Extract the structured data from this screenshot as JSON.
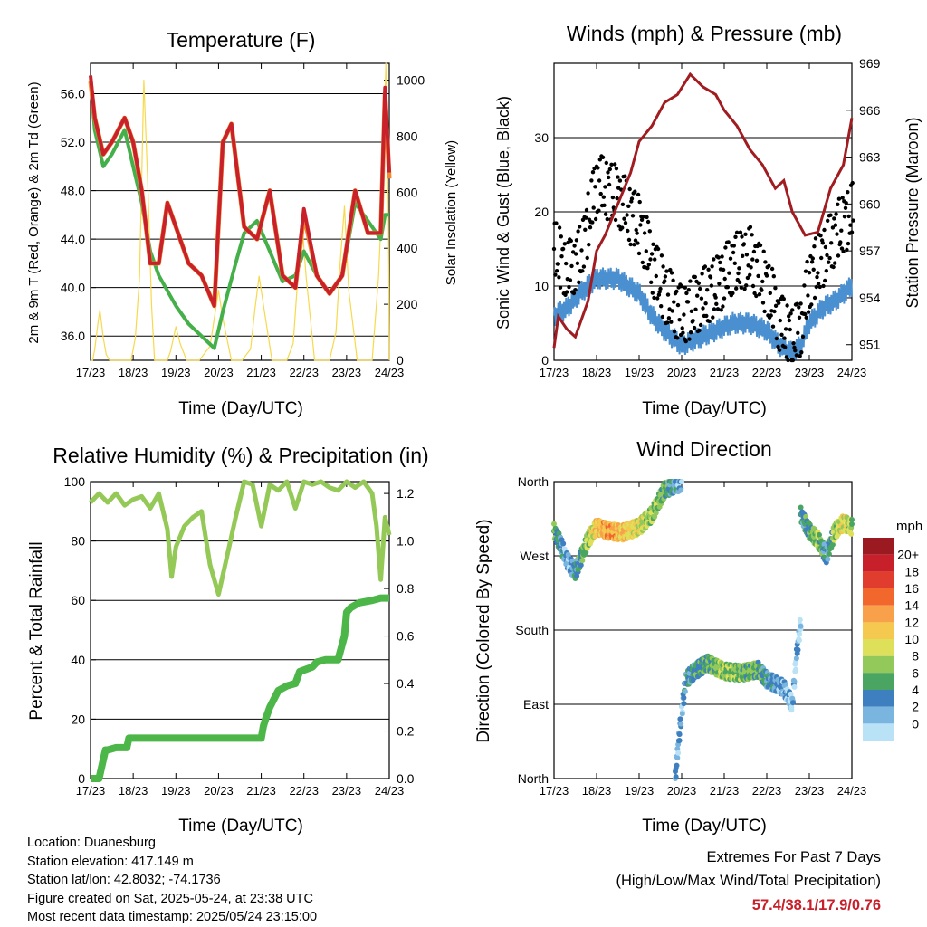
{
  "colors": {
    "temp2m": "#c9212b",
    "temp9m": "#f08a2e",
    "dewpoint": "#45b04a",
    "solar": "#f7d94d",
    "wind": "#4a8fd0",
    "gust": "#000000",
    "pressure": "#a01c20",
    "rh": "#95c957",
    "rain": "#4cb748",
    "grid": "#000000",
    "extremes": "#c8202a"
  },
  "chart_data": [
    {
      "id": "temperature",
      "type": "line",
      "title": "Temperature (F)",
      "xlabel": "Time (Day/UTC)",
      "ylabel": "2m & 9m T (Red, Orange) & 2m Td (Green)",
      "ylabel_right": "Solar Insolation (Yellow)",
      "x_ticks": [
        "17/23",
        "18/23",
        "19/23",
        "20/23",
        "21/23",
        "22/23",
        "23/23",
        "24/23"
      ],
      "ylim": [
        34,
        58.5
      ],
      "y_ticks": [
        "56.0",
        "52.0",
        "48.0",
        "44.0",
        "40.0",
        "36.0"
      ],
      "y_tick_values": [
        56,
        52,
        48,
        44,
        40,
        36
      ],
      "ylim_right": [
        0,
        1060
      ],
      "y_ticks_right": [
        "1000",
        "800",
        "600",
        "400",
        "200",
        "0"
      ],
      "y_tick_values_right": [
        1000,
        800,
        600,
        400,
        200,
        0
      ],
      "series": [
        {
          "key": "solar",
          "color": "#f7d94d",
          "axis": "right",
          "x": [
            0,
            0.05,
            0.1,
            0.18,
            0.22,
            0.3,
            0.37,
            0.45,
            0.95,
            1.05,
            1.15,
            1.25,
            1.35,
            1.43,
            1.5,
            1.8,
            1.87,
            1.93,
            2.0,
            2.1,
            2.25,
            2.55,
            2.8,
            2.9,
            3.0,
            3.1,
            3.3,
            3.55,
            3.75,
            3.85,
            3.95,
            4.05,
            4.25,
            4.6,
            4.75,
            4.85,
            4.95,
            5.05,
            5.25,
            5.6,
            5.75,
            5.85,
            5.95,
            6.05,
            6.25,
            6.6,
            6.75,
            6.85,
            6.92,
            6.98,
            7.0
          ],
          "y": [
            0,
            0,
            40,
            140,
            180,
            80,
            20,
            0,
            0,
            80,
            300,
            1000,
            600,
            200,
            0,
            0,
            30,
            70,
            120,
            60,
            0,
            0,
            50,
            150,
            250,
            150,
            0,
            0,
            40,
            180,
            300,
            200,
            0,
            0,
            60,
            280,
            500,
            300,
            0,
            0,
            100,
            350,
            550,
            250,
            0,
            0,
            300,
            650,
            1060,
            500,
            0
          ]
        },
        {
          "key": "dewpoint",
          "color": "#45b04a",
          "axis": "left",
          "x": [
            0,
            0.1,
            0.3,
            0.5,
            0.8,
            1.0,
            1.2,
            1.4,
            1.6,
            2.0,
            2.3,
            2.6,
            2.9,
            3.1,
            3.4,
            3.6,
            3.9,
            4.2,
            4.5,
            4.8,
            5.0,
            5.3,
            5.6,
            5.9,
            6.2,
            6.6,
            6.8,
            6.9,
            7.0
          ],
          "y": [
            57,
            53,
            50,
            51,
            53,
            50,
            47,
            43,
            41,
            38.5,
            37,
            36,
            35,
            38,
            42,
            44.5,
            45.5,
            43,
            40.5,
            41,
            43,
            41,
            39.5,
            41,
            47,
            45,
            44,
            46,
            46
          ]
        },
        {
          "key": "temp9m",
          "color": "#f08a2e",
          "axis": "left",
          "x": [
            0,
            0.1,
            0.3,
            0.5,
            0.8,
            1.0,
            1.2,
            1.4,
            1.6,
            1.8,
            2.0,
            2.3,
            2.6,
            2.9,
            3.1,
            3.3,
            3.6,
            3.9,
            4.2,
            4.5,
            4.8,
            5.0,
            5.3,
            5.6,
            5.9,
            6.2,
            6.5,
            6.8,
            6.9,
            7.0
          ],
          "y": [
            57,
            54,
            51,
            52,
            54,
            52,
            48,
            42,
            42,
            47,
            45,
            42,
            41,
            38.5,
            52,
            53.5,
            45,
            44,
            48,
            41,
            40,
            46,
            41,
            39.5,
            41,
            48,
            44.5,
            44.5,
            56,
            49
          ]
        },
        {
          "key": "temp2m",
          "color": "#c9212b",
          "axis": "left",
          "x": [
            0,
            0.1,
            0.3,
            0.5,
            0.8,
            1.0,
            1.2,
            1.4,
            1.6,
            1.8,
            2.0,
            2.3,
            2.6,
            2.9,
            3.1,
            3.3,
            3.6,
            3.9,
            4.2,
            4.5,
            4.8,
            5.0,
            5.3,
            5.6,
            5.9,
            6.2,
            6.5,
            6.8,
            6.9,
            7.0
          ],
          "y": [
            57.5,
            54,
            51,
            52,
            54,
            52,
            48,
            42,
            42,
            47,
            45,
            42,
            41,
            38.5,
            52,
            53.5,
            45,
            44,
            48,
            41,
            40,
            46.5,
            41,
            39.5,
            41,
            48,
            44.5,
            44.5,
            56.5,
            49.5
          ]
        }
      ]
    },
    {
      "id": "winds",
      "type": "scatter",
      "title": "Winds (mph) & Pressure (mb)",
      "xlabel": "Time (Day/UTC)",
      "ylabel": "Sonic Wind & Gust (Blue, Black)",
      "ylabel_right": "Station Pressure (Maroon)",
      "x_ticks": [
        "17/23",
        "18/23",
        "19/23",
        "20/23",
        "21/23",
        "22/23",
        "23/23",
        "24/23"
      ],
      "ylim": [
        0,
        40
      ],
      "y_ticks": [
        "30",
        "20",
        "10",
        "0"
      ],
      "y_tick_values": [
        30,
        20,
        10,
        0
      ],
      "ylim_right": [
        950.0,
        969.0
      ],
      "y_ticks_right": [
        "969",
        "966",
        "963",
        "960",
        "957",
        "954",
        "951"
      ],
      "y_tick_values_right": [
        969,
        966,
        963,
        960,
        957,
        954,
        951
      ],
      "series": [
        {
          "key": "wind",
          "color": "#4a8fd0",
          "type": "line",
          "x": [
            0,
            0.3,
            0.6,
            1.0,
            1.5,
            2.0,
            2.3,
            2.6,
            3.0,
            3.4,
            3.8,
            4.2,
            4.6,
            5.0,
            5.3,
            5.6,
            5.8,
            6.0,
            6.3,
            6.6,
            7.0
          ],
          "y": [
            6,
            7,
            9,
            11,
            11,
            9,
            6,
            4,
            2,
            3,
            4,
            5,
            5,
            4,
            2,
            1,
            2,
            5,
            7,
            8,
            10
          ]
        },
        {
          "key": "gust",
          "color": "#000000",
          "type": "scatter",
          "x": [
            0,
            0.3,
            0.6,
            1.0,
            1.5,
            2.0,
            2.3,
            2.6,
            3.0,
            3.4,
            3.8,
            4.2,
            4.6,
            5.0,
            5.3,
            5.6,
            5.8,
            6.0,
            6.3,
            6.6,
            7.0
          ],
          "y": [
            15,
            12,
            14,
            24,
            22,
            18,
            13,
            9,
            6,
            8,
            10,
            13,
            14,
            10,
            5,
            3,
            5,
            11,
            14,
            17,
            20
          ]
        },
        {
          "key": "pressure",
          "color": "#a01c20",
          "type": "line",
          "axis": "right",
          "x": [
            0,
            0.1,
            0.3,
            0.5,
            0.8,
            1.0,
            1.2,
            1.5,
            1.8,
            2.0,
            2.3,
            2.6,
            2.9,
            3.2,
            3.5,
            3.8,
            4.0,
            4.3,
            4.6,
            4.9,
            5.2,
            5.4,
            5.6,
            5.9,
            6.2,
            6.5,
            6.8,
            7.0
          ],
          "y": [
            950.8,
            952.8,
            952.0,
            951.5,
            953.8,
            957.0,
            958.0,
            960.0,
            962.0,
            964.0,
            965.0,
            966.5,
            967.0,
            968.3,
            967.5,
            967.0,
            966.0,
            965.0,
            963.5,
            962.5,
            961.0,
            961.5,
            959.5,
            958.0,
            958.2,
            961.0,
            962.5,
            965.5
          ]
        }
      ]
    },
    {
      "id": "humidity",
      "type": "line",
      "title": "Relative Humidity (%) & Precipitation (in)",
      "xlabel": "Time (Day/UTC)",
      "ylabel": "Percent & Total Rainfall",
      "x_ticks": [
        "17/23",
        "18/23",
        "19/23",
        "20/23",
        "21/23",
        "22/23",
        "23/23",
        "24/23"
      ],
      "ylim": [
        0,
        100
      ],
      "y_ticks": [
        "100",
        "80",
        "60",
        "40",
        "20",
        "0"
      ],
      "y_tick_values": [
        100,
        80,
        60,
        40,
        20,
        0
      ],
      "ylim_right": [
        0,
        1.25
      ],
      "y_ticks_right": [
        "1.2",
        "1.0",
        "0.8",
        "0.6",
        "0.4",
        "0.2",
        "0.0"
      ],
      "y_tick_values_right": [
        1.2,
        1.0,
        0.8,
        0.6,
        0.4,
        0.2,
        0.0
      ],
      "series": [
        {
          "key": "rh",
          "color": "#95c957",
          "axis": "left",
          "x": [
            0,
            0.2,
            0.4,
            0.6,
            0.8,
            1.0,
            1.2,
            1.4,
            1.6,
            1.8,
            1.9,
            2.0,
            2.2,
            2.4,
            2.6,
            2.8,
            3.0,
            3.2,
            3.4,
            3.6,
            3.8,
            4.0,
            4.2,
            4.4,
            4.6,
            4.8,
            5.0,
            5.2,
            5.4,
            5.6,
            5.8,
            6.0,
            6.2,
            6.4,
            6.6,
            6.7,
            6.8,
            6.9,
            7.0
          ],
          "y": [
            93,
            96,
            93,
            96,
            92,
            94,
            95,
            91,
            96,
            84,
            68,
            78,
            85,
            88,
            90,
            72,
            62,
            75,
            88,
            100,
            99,
            85,
            99,
            97,
            100,
            91,
            100,
            99,
            100,
            98,
            97,
            100,
            98,
            100,
            96,
            85,
            67,
            88,
            82
          ]
        },
        {
          "key": "rain",
          "color": "#4cb748",
          "axis": "right",
          "x": [
            0,
            0.2,
            0.35,
            0.4,
            0.6,
            0.85,
            0.9,
            1.0,
            1.5,
            2.0,
            2.5,
            3.0,
            3.5,
            4.0,
            4.05,
            4.1,
            4.2,
            4.4,
            4.6,
            4.8,
            4.9,
            5.2,
            5.3,
            5.5,
            5.8,
            5.95,
            6.0,
            6.1,
            6.3,
            6.6,
            6.8,
            7.0
          ],
          "y": [
            0,
            0,
            0.12,
            0.12,
            0.13,
            0.13,
            0.17,
            0.17,
            0.17,
            0.17,
            0.17,
            0.17,
            0.17,
            0.17,
            0.22,
            0.25,
            0.3,
            0.37,
            0.39,
            0.4,
            0.45,
            0.47,
            0.49,
            0.5,
            0.5,
            0.6,
            0.7,
            0.72,
            0.74,
            0.75,
            0.76,
            0.76
          ]
        }
      ]
    },
    {
      "id": "direction",
      "type": "scatter",
      "title": "Wind Direction",
      "xlabel": "Time (Day/UTC)",
      "ylabel": "Direction (Colored By Speed)",
      "x_ticks": [
        "17/23",
        "18/23",
        "19/23",
        "20/23",
        "21/23",
        "22/23",
        "23/23",
        "24/23"
      ],
      "ylim": [
        0,
        360
      ],
      "y_ticks": [
        "North",
        "West",
        "South",
        "East",
        "North"
      ],
      "y_tick_values": [
        360,
        270,
        180,
        90,
        0
      ],
      "legend_title": "mph",
      "legend_labels": [
        "20+",
        "18",
        "16",
        "14",
        "12",
        "10",
        "8",
        "6",
        "4",
        "2",
        "0"
      ],
      "legend_colors": [
        "#9b1a21",
        "#c8202a",
        "#e13d2e",
        "#f1672c",
        "#f8a14a",
        "#f5c84f",
        "#dfe05a",
        "#93c95a",
        "#4aa563",
        "#3e7fbf",
        "#7ab5e0",
        "#b9e2f6"
      ],
      "series": [
        {
          "key": "dir_w1",
          "x": [
            0,
            0.15,
            0.3,
            0.5,
            0.8,
            1.0,
            1.3,
            1.6,
            2.0,
            2.3,
            2.6,
            2.8,
            3.0
          ],
          "y": [
            300,
            285,
            265,
            250,
            290,
            305,
            300,
            298,
            305,
            320,
            350,
            355,
            358
          ],
          "speeds": [
            6,
            4,
            2,
            4,
            8,
            12,
            14,
            12,
            10,
            8,
            6,
            4,
            2
          ]
        },
        {
          "key": "dir_e",
          "x": [
            2.85,
            2.9,
            3.0,
            3.1,
            3.3,
            3.6,
            4.0,
            4.4,
            4.8,
            5.0,
            5.2,
            5.4,
            5.6,
            5.7,
            5.8
          ],
          "y": [
            0,
            30,
            80,
            120,
            130,
            140,
            130,
            128,
            132,
            120,
            115,
            110,
            90,
            150,
            190
          ],
          "speeds": [
            2,
            3,
            2,
            4,
            5,
            6,
            8,
            7,
            6,
            4,
            3,
            2,
            1,
            2,
            1
          ]
        },
        {
          "key": "dir_w2",
          "x": [
            5.8,
            6.0,
            6.2,
            6.4,
            6.6,
            6.8,
            7.0
          ],
          "y": [
            320,
            300,
            290,
            270,
            300,
            310,
            305
          ],
          "speeds": [
            4,
            6,
            8,
            3,
            8,
            10,
            8
          ]
        }
      ]
    }
  ],
  "info": {
    "location": "Location: Duanesburg",
    "elevation": "Station elevation: 417.149 m",
    "latlon": "Station lat/lon: 42.8032; -74.1736",
    "created": "Figure created on Sat, 2025-05-24, at 23:38 UTC",
    "recent": "Most recent data timestamp: 2025/05/24 23:15:00"
  },
  "extremes": {
    "title": "Extremes For Past 7 Days",
    "subtitle": "(High/Low/Max Wind/Total Precipitation)",
    "values": "57.4/38.1/17.9/0.76"
  }
}
